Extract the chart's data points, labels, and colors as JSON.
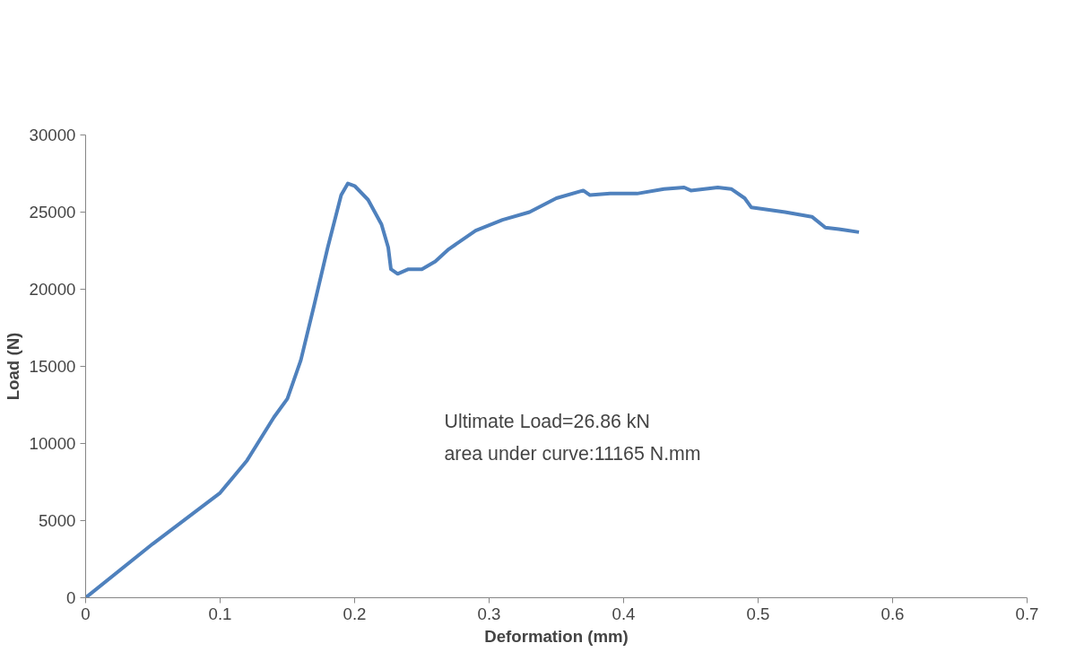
{
  "chart_data": {
    "type": "line",
    "xlabel": "Deformation (mm)",
    "ylabel": "Load (N)",
    "x": [
      0,
      0.05,
      0.1,
      0.12,
      0.14,
      0.15,
      0.16,
      0.17,
      0.18,
      0.19,
      0.195,
      0.2,
      0.21,
      0.22,
      0.225,
      0.227,
      0.232,
      0.24,
      0.25,
      0.26,
      0.27,
      0.29,
      0.31,
      0.33,
      0.35,
      0.37,
      0.375,
      0.39,
      0.41,
      0.43,
      0.445,
      0.45,
      0.47,
      0.48,
      0.49,
      0.495,
      0.52,
      0.54,
      0.55,
      0.56,
      0.575
    ],
    "series": [
      {
        "color": "#4f81bd",
        "values": [
          0,
          3500,
          6800,
          8900,
          11700,
          12900,
          15400,
          19000,
          22700,
          26100,
          26860,
          26700,
          25800,
          24200,
          22700,
          21300,
          21000,
          21300,
          21300,
          21800,
          22600,
          23800,
          24500,
          25000,
          25900,
          26400,
          26100,
          26200,
          26200,
          26500,
          26600,
          26400,
          26600,
          26500,
          25900,
          25300,
          25000,
          24700,
          24000,
          23900,
          23700
        ]
      }
    ],
    "xlim": [
      0,
      0.7
    ],
    "xticks": [
      0,
      0.1,
      0.2,
      0.3,
      0.4,
      0.5,
      0.6,
      0.7
    ],
    "ylim": [
      0,
      30000
    ],
    "yticks": [
      0,
      5000,
      10000,
      15000,
      20000,
      25000,
      30000
    ],
    "grid": false,
    "marker": "none",
    "line_style": "solid",
    "annotations": [
      "Ultimate Load=26.86 kN",
      "area under  curve:11165 N.mm"
    ]
  }
}
